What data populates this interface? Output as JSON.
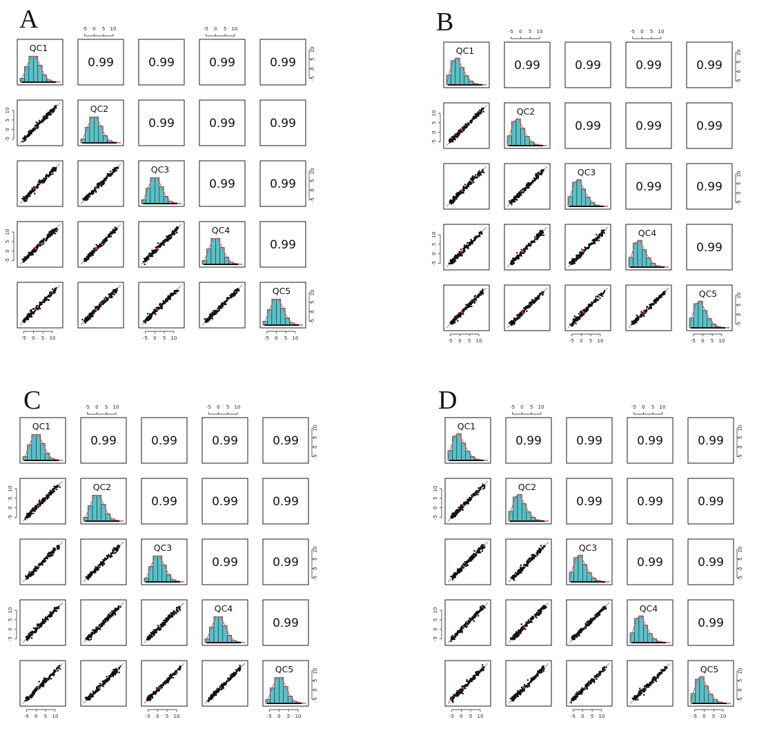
{
  "colors": {
    "histogram_fill": "#5bc0c8",
    "density_line": "#e8484d",
    "fit_line": "#e03030",
    "points": "#111111",
    "mean_marker": "#e03030"
  },
  "chart_data": [
    {
      "type": "scatter-matrix",
      "panel_label": "A",
      "variables": [
        "QC1",
        "QC2",
        "QC3",
        "QC4",
        "QC5"
      ],
      "correlations": [
        [
          "0.99",
          "0.99",
          "0.99",
          "0.99"
        ],
        [
          "0.99",
          "0.99",
          "0.99"
        ],
        [
          "0.99",
          "0.99"
        ],
        [
          "0.99"
        ]
      ],
      "axis_range": [
        -7,
        14
      ],
      "tick_values": [
        -5,
        0,
        5,
        10
      ],
      "histogram_bins": [
        -6,
        -4,
        -2,
        0,
        2,
        4,
        6,
        8,
        10,
        12
      ],
      "histogram_counts": [
        0.14,
        0.55,
        0.92,
        0.92,
        0.6,
        0.26,
        0.08,
        0.03,
        0.01
      ]
    },
    {
      "type": "scatter-matrix",
      "panel_label": "B",
      "variables": [
        "QC1",
        "QC2",
        "QC3",
        "QC4",
        "QC5"
      ],
      "correlations": [
        [
          "0.99",
          "0.99",
          "0.99",
          "0.99"
        ],
        [
          "0.99",
          "0.99",
          "0.99"
        ],
        [
          "0.99",
          "0.99"
        ],
        [
          "0.99"
        ]
      ],
      "axis_range": [
        -7,
        14
      ],
      "tick_values": [
        -5,
        0,
        5,
        10
      ],
      "histogram_bins": [
        -6,
        -4,
        -2,
        0,
        2,
        4,
        6,
        8,
        10,
        12
      ],
      "histogram_counts": [
        0.35,
        0.86,
        0.95,
        0.62,
        0.33,
        0.14,
        0.05,
        0.02,
        0.01
      ]
    },
    {
      "type": "scatter-matrix",
      "panel_label": "C",
      "variables": [
        "QC1",
        "QC2",
        "QC3",
        "QC4",
        "QC5"
      ],
      "correlations": [
        [
          "0.99",
          "0.99",
          "0.99",
          "0.99"
        ],
        [
          "0.99",
          "0.99",
          "0.99"
        ],
        [
          "0.99",
          "0.99"
        ],
        [
          "0.99"
        ]
      ],
      "axis_range": [
        -7,
        14
      ],
      "tick_values": [
        -5,
        0,
        5,
        10
      ],
      "histogram_bins": [
        -6,
        -4,
        -2,
        0,
        2,
        4,
        6,
        8,
        10,
        12
      ],
      "histogram_counts": [
        0.14,
        0.55,
        0.92,
        0.92,
        0.6,
        0.26,
        0.08,
        0.03,
        0.01
      ]
    },
    {
      "type": "scatter-matrix",
      "panel_label": "D",
      "variables": [
        "QC1",
        "QC2",
        "QC3",
        "QC4",
        "QC5"
      ],
      "correlations": [
        [
          "0.99",
          "0.99",
          "0.99",
          "0.99"
        ],
        [
          "0.99",
          "0.99",
          "0.99"
        ],
        [
          "0.99",
          "0.99"
        ],
        [
          "0.99"
        ]
      ],
      "axis_range": [
        -7,
        14
      ],
      "tick_values": [
        -5,
        0,
        5,
        10
      ],
      "histogram_bins": [
        -6,
        -4,
        -2,
        0,
        2,
        4,
        6,
        8,
        10,
        12
      ],
      "histogram_counts": [
        0.35,
        0.86,
        0.95,
        0.62,
        0.33,
        0.14,
        0.05,
        0.02,
        0.01
      ]
    }
  ]
}
